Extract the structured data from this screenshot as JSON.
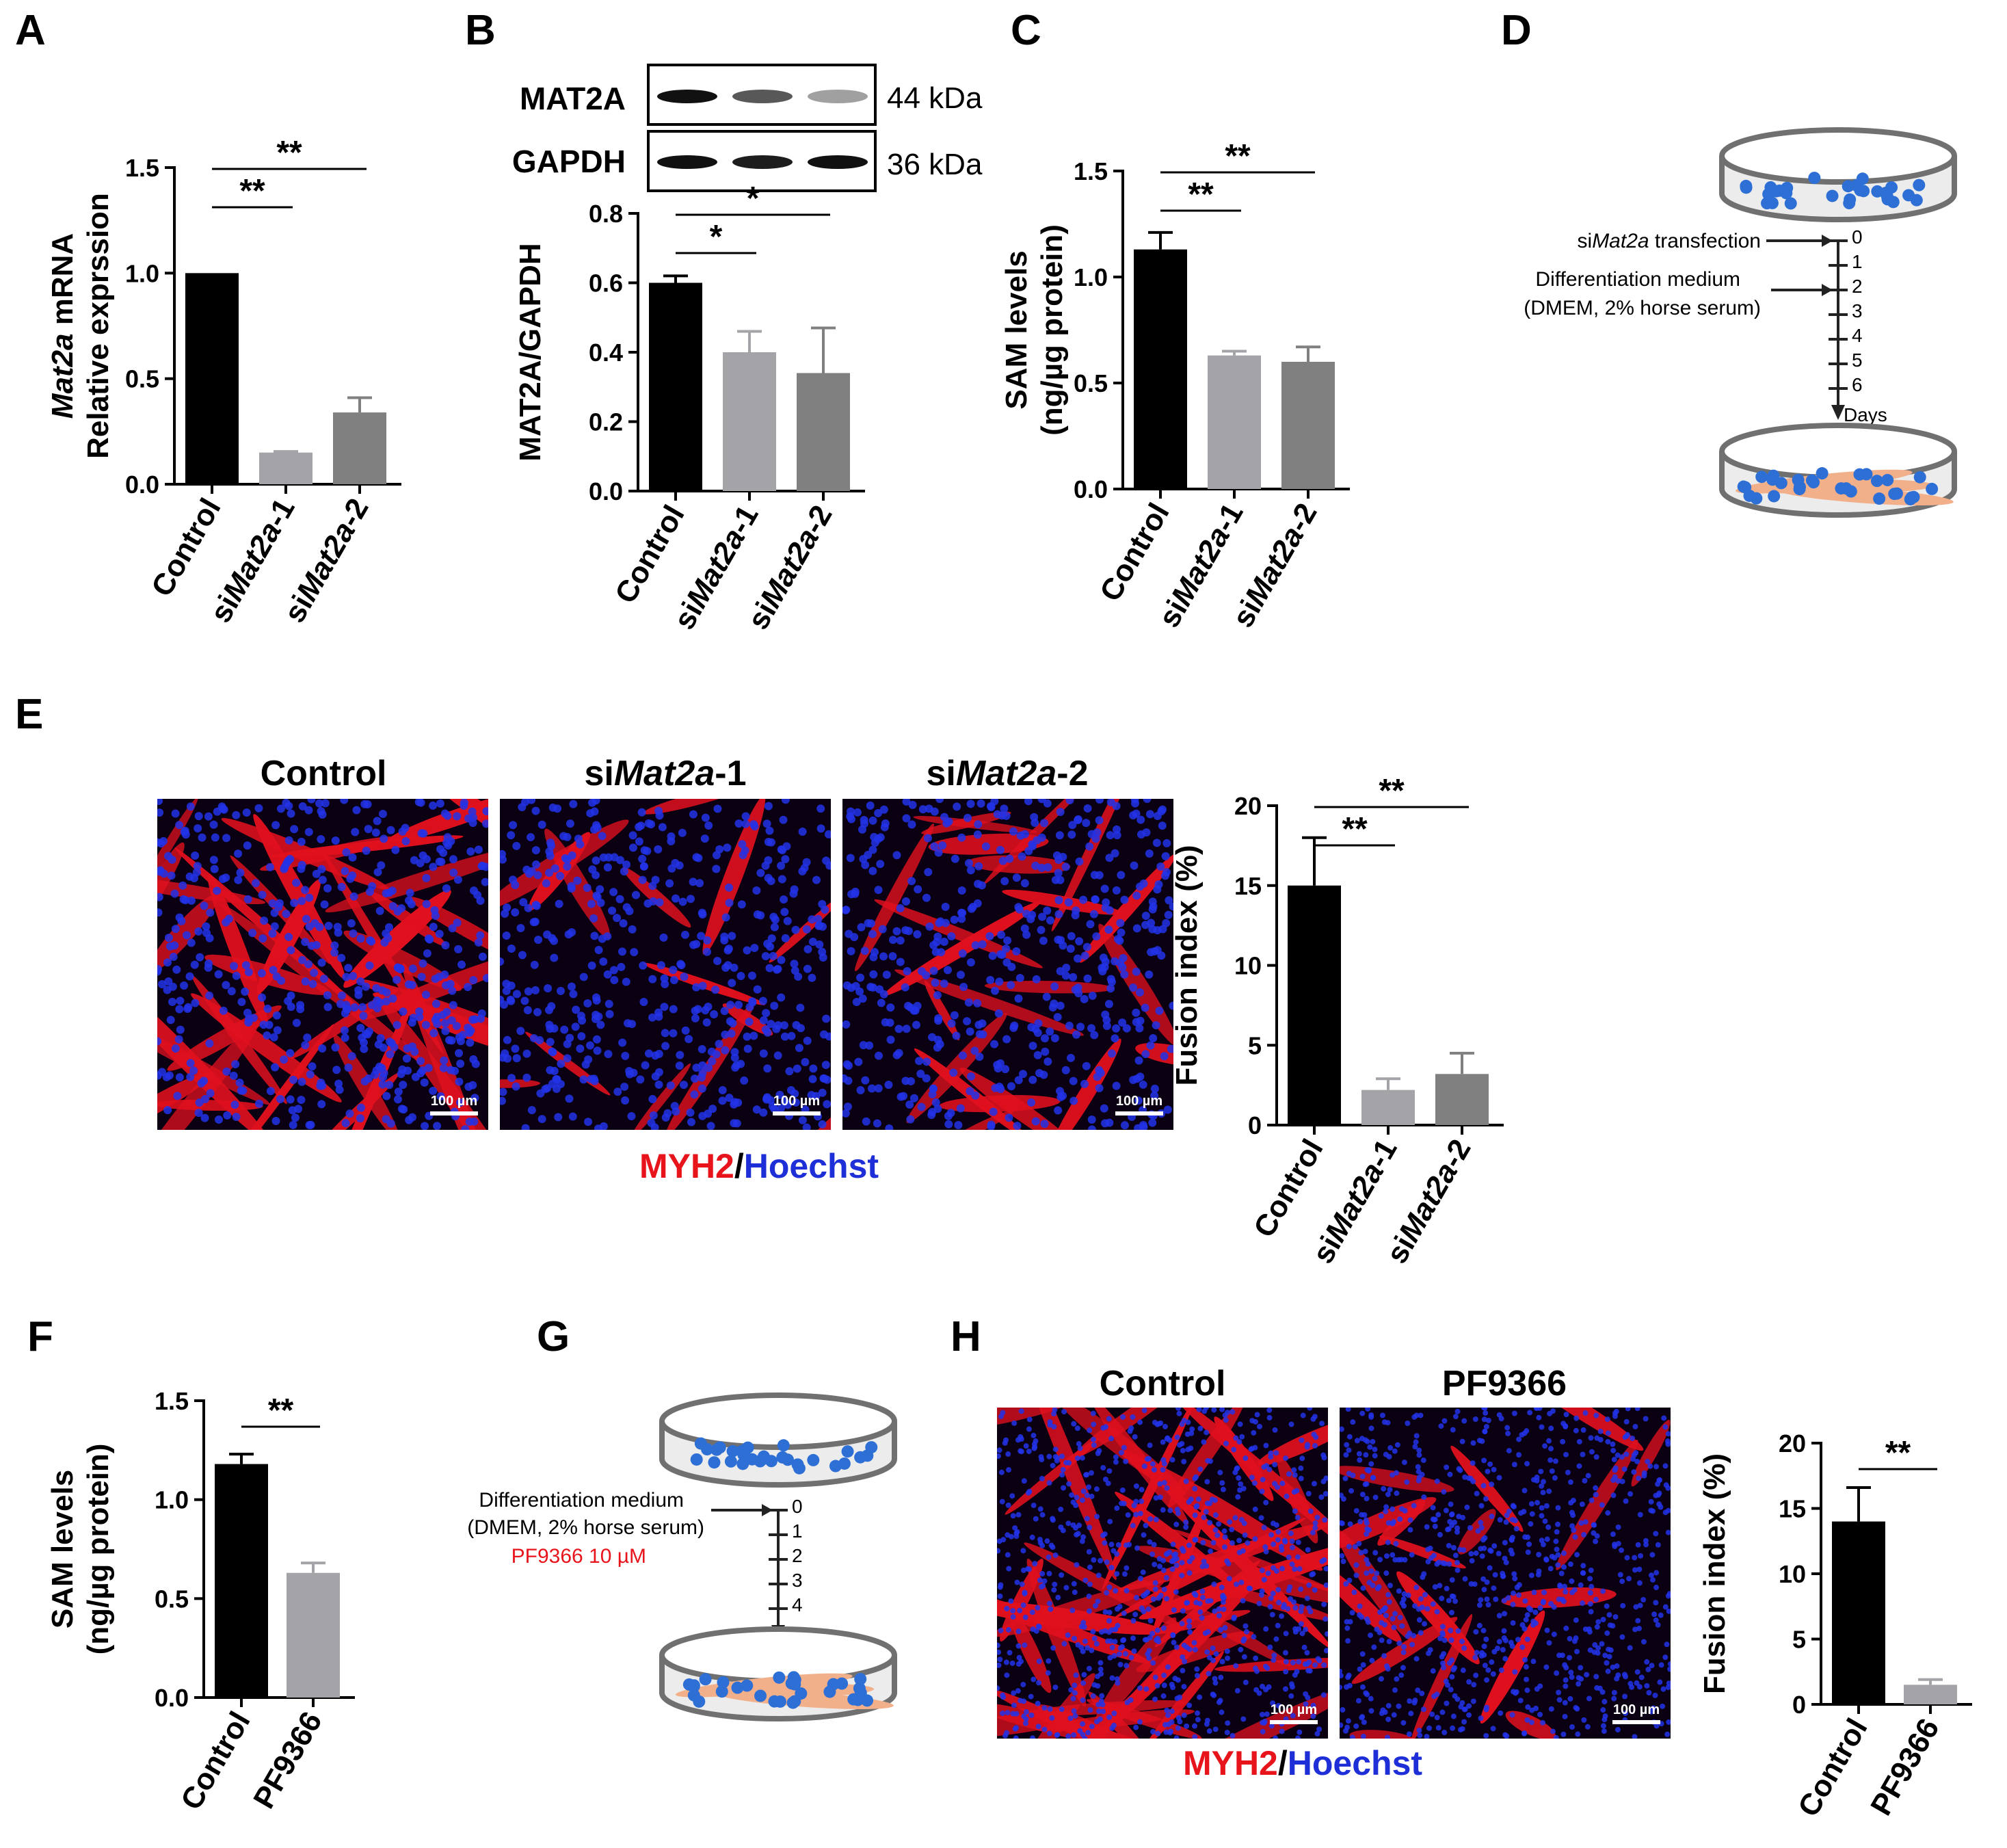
{
  "colors": {
    "black": "#000000",
    "light_gray": "#a4a4a8",
    "mid_gray": "#808080",
    "red": "#e8141c",
    "blue": "#1f2fd8",
    "cell_blue": "#2e6fd6",
    "myotube_orange": "#f2b08a"
  },
  "panels": {
    "A": "A",
    "B": "B",
    "C": "C",
    "D": "D",
    "E": "E",
    "F": "F",
    "G": "G",
    "H": "H"
  },
  "blot": {
    "labels": [
      "MAT2A",
      "GAPDH"
    ],
    "sizes": [
      "44 kDa",
      "36 kDa"
    ],
    "bands_mat2a": [
      1.0,
      0.7,
      0.4
    ],
    "bands_gapdh": [
      1.0,
      0.95,
      1.0
    ]
  },
  "images": {
    "E_titles": {
      "c": "Control",
      "s1_pre": "si",
      "s1_it": "Mat2a",
      "s1_post": "-1",
      "s2_pre": "si",
      "s2_it": "Mat2a",
      "s2_post": "-2"
    },
    "H_titles": [
      "Control",
      "PF9366"
    ],
    "scale_bar": "100 µm",
    "stain_red": "MYH2",
    "stain_sep": "/",
    "stain_blue": "Hoechst"
  },
  "schemes": {
    "D": {
      "transfect_pre": "si",
      "transfect_it": "Mat2a",
      "transfect_post": " transfection",
      "medium_l1": "Differentiation medium",
      "medium_l2": "(DMEM, 2% horse serum)",
      "days": [
        "0",
        "1",
        "2",
        "3",
        "4",
        "5",
        "6"
      ],
      "days_label": "Days"
    },
    "G": {
      "medium_l1": "Differentiation medium",
      "medium_l2": "(DMEM, 2% horse serum)",
      "drug": "PF9366 10 µM",
      "days": [
        "0",
        "1",
        "2",
        "3",
        "4"
      ],
      "days_label": "Days"
    }
  },
  "chart_data": [
    {
      "panel": "A",
      "type": "bar",
      "categories": [
        {
          "pre": "",
          "it": "",
          "post": "Control"
        },
        {
          "pre": "si",
          "it": "Mat2a",
          "post": "-1"
        },
        {
          "pre": "si",
          "it": "Mat2a",
          "post": "-2"
        }
      ],
      "values": [
        1.0,
        0.15,
        0.34
      ],
      "errors": [
        0.0,
        0.005,
        0.07
      ],
      "colors": [
        "#000000",
        "#a4a4a8",
        "#808080"
      ],
      "ylim": [
        0,
        1.5
      ],
      "yticks": [
        "0.0",
        "0.5",
        "1.0",
        "1.5"
      ],
      "ylabel_lines": [
        [
          {
            "t": "Mat2a",
            "i": true
          },
          {
            "t": " mRNA",
            "i": false
          }
        ],
        [
          {
            "t": "Relative exprssion",
            "i": false
          }
        ]
      ],
      "significance": [
        {
          "from": 0,
          "to": 1,
          "label": "**"
        },
        {
          "from": 0,
          "to": 2,
          "label": "**"
        }
      ]
    },
    {
      "panel": "B",
      "type": "bar",
      "categories": [
        {
          "pre": "",
          "it": "",
          "post": "Control"
        },
        {
          "pre": "si",
          "it": "Mat2a",
          "post": "-1"
        },
        {
          "pre": "si",
          "it": "Mat2a",
          "post": "-2"
        }
      ],
      "values": [
        0.6,
        0.4,
        0.34
      ],
      "errors": [
        0.02,
        0.06,
        0.13
      ],
      "colors": [
        "#000000",
        "#a4a4a8",
        "#808080"
      ],
      "ylim": [
        0,
        0.8
      ],
      "yticks": [
        "0.0",
        "0.2",
        "0.4",
        "0.6",
        "0.8"
      ],
      "ylabel_lines": [
        [
          {
            "t": "MAT2A/GAPDH",
            "i": false
          }
        ]
      ],
      "significance": [
        {
          "from": 0,
          "to": 1,
          "label": "*"
        },
        {
          "from": 0,
          "to": 2,
          "label": "*"
        }
      ]
    },
    {
      "panel": "C",
      "type": "bar",
      "categories": [
        {
          "pre": "",
          "it": "",
          "post": "Control"
        },
        {
          "pre": "si",
          "it": "Mat2a",
          "post": "-1"
        },
        {
          "pre": "si",
          "it": "Mat2a",
          "post": "-2"
        }
      ],
      "values": [
        1.13,
        0.63,
        0.6
      ],
      "errors": [
        0.08,
        0.02,
        0.07
      ],
      "colors": [
        "#000000",
        "#a4a4a8",
        "#808080"
      ],
      "ylim": [
        0,
        1.5
      ],
      "yticks": [
        "0.0",
        "0.5",
        "1.0",
        "1.5"
      ],
      "ylabel_lines": [
        [
          {
            "t": "SAM levels",
            "i": false
          }
        ],
        [
          {
            "t": "(ng/µg protein)",
            "i": false
          }
        ]
      ],
      "significance": [
        {
          "from": 0,
          "to": 1,
          "label": "**"
        },
        {
          "from": 0,
          "to": 2,
          "label": "**"
        }
      ]
    },
    {
      "panel": "E",
      "type": "bar",
      "categories": [
        {
          "pre": "",
          "it": "",
          "post": "Control"
        },
        {
          "pre": "si",
          "it": "Mat2a",
          "post": "-1"
        },
        {
          "pre": "si",
          "it": "Mat2a",
          "post": "-2"
        }
      ],
      "values": [
        15.0,
        2.2,
        3.2
      ],
      "errors": [
        3.0,
        0.7,
        1.3
      ],
      "colors": [
        "#000000",
        "#a4a4a8",
        "#808080"
      ],
      "ylim": [
        0,
        20
      ],
      "yticks": [
        "0",
        "5",
        "10",
        "15",
        "20"
      ],
      "ylabel_lines": [
        [
          {
            "t": "Fusion index (%)",
            "i": false
          }
        ]
      ],
      "significance": [
        {
          "from": 0,
          "to": 1,
          "label": "**"
        },
        {
          "from": 0,
          "to": 2,
          "label": "**"
        }
      ]
    },
    {
      "panel": "F",
      "type": "bar",
      "categories": [
        {
          "pre": "",
          "it": "",
          "post": "Control"
        },
        {
          "pre": "",
          "it": "",
          "post": "PF9366"
        }
      ],
      "values": [
        1.18,
        0.63
      ],
      "errors": [
        0.05,
        0.05
      ],
      "colors": [
        "#000000",
        "#a4a4a8"
      ],
      "ylim": [
        0,
        1.5
      ],
      "yticks": [
        "0.0",
        "0.5",
        "1.0",
        "1.5"
      ],
      "ylabel_lines": [
        [
          {
            "t": "SAM levels",
            "i": false
          }
        ],
        [
          {
            "t": "(ng/µg protein)",
            "i": false
          }
        ]
      ],
      "significance": [
        {
          "from": 0,
          "to": 1,
          "label": "**"
        }
      ]
    },
    {
      "panel": "H",
      "type": "bar",
      "categories": [
        {
          "pre": "",
          "it": "",
          "post": "Control"
        },
        {
          "pre": "",
          "it": "",
          "post": "PF9366"
        }
      ],
      "values": [
        14.0,
        1.5
      ],
      "errors": [
        2.6,
        0.4
      ],
      "colors": [
        "#000000",
        "#a4a4a8"
      ],
      "ylim": [
        0,
        20
      ],
      "yticks": [
        "0",
        "5",
        "10",
        "15",
        "20"
      ],
      "ylabel_lines": [
        [
          {
            "t": "Fusion index (%)",
            "i": false
          }
        ]
      ],
      "significance": [
        {
          "from": 0,
          "to": 1,
          "label": "**"
        }
      ]
    }
  ]
}
